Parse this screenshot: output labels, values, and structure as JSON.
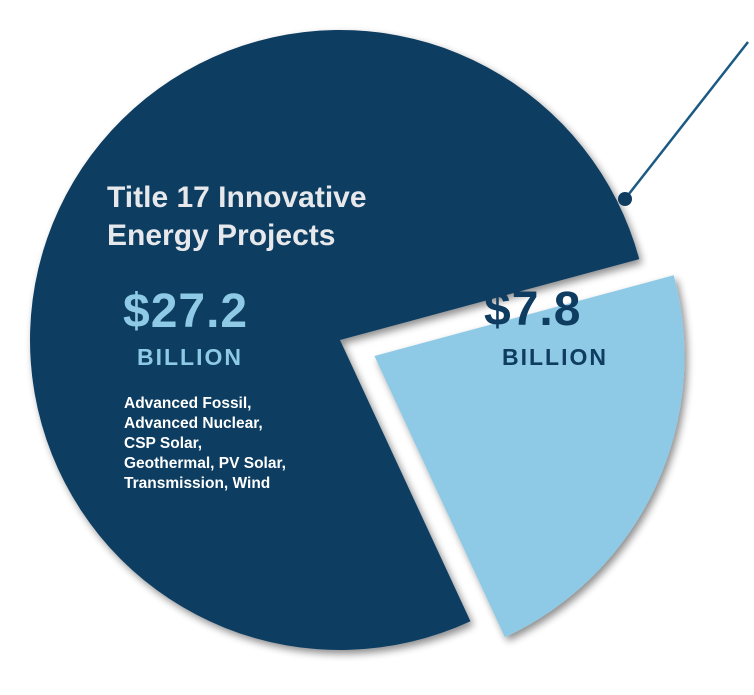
{
  "chart_data": {
    "type": "pie",
    "slices": [
      {
        "title": "Title 17 Innovative Energy Projects",
        "value": 27.2,
        "value_label": "$27.2",
        "unit_label": "BILLION",
        "details": [
          "Advanced Fossil,",
          "Advanced Nuclear,",
          "CSP Solar,",
          "Geothermal, PV Solar,",
          "Transmission, Wind"
        ],
        "color": "#0f3c61"
      },
      {
        "value": 7.8,
        "value_label": "$7.8",
        "unit_label": "BILLION",
        "color": "#8ecae6",
        "exploded": true
      }
    ],
    "leader_line_color": "#1b5a82",
    "text_colors": {
      "main_title": "#e6e8ec",
      "main_value": "#8ecae6",
      "small_value": "#0f3c61",
      "details": "#ffffff"
    }
  }
}
